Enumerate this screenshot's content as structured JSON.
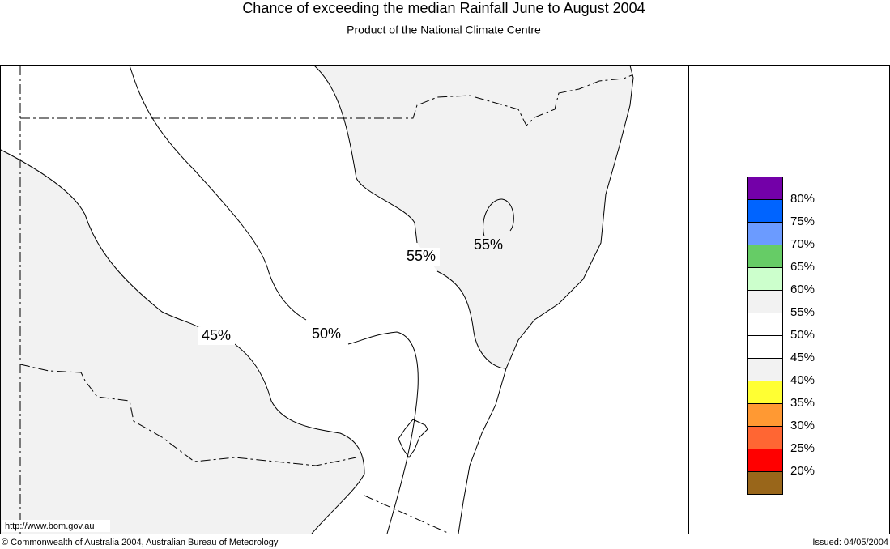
{
  "header": {
    "title": "Chance of exceeding the median Rainfall June to August 2004",
    "subtitle": "Product of the National Climate Centre"
  },
  "map": {
    "contour_labels": [
      "55%",
      "55%",
      "50%",
      "45%"
    ],
    "url": "http://www.bom.gov.au"
  },
  "legend": {
    "colors": [
      "#7300a8",
      "#0064ff",
      "#6b9bff",
      "#66cc66",
      "#ccffcc",
      "#f2f2f2",
      "#ffffff",
      "#ffffff",
      "#f2f2f2",
      "#ffff33",
      "#ff9933",
      "#ff6633",
      "#ff0000",
      "#99661a"
    ],
    "labels": [
      "80%",
      "75%",
      "70%",
      "65%",
      "60%",
      "55%",
      "50%",
      "45%",
      "40%",
      "35%",
      "30%",
      "25%",
      "20%"
    ]
  },
  "footer": {
    "copyright": "© Commonwealth of Australia 2004, Australian Bureau of Meteorology",
    "issued": "Issued: 04/05/2004"
  }
}
